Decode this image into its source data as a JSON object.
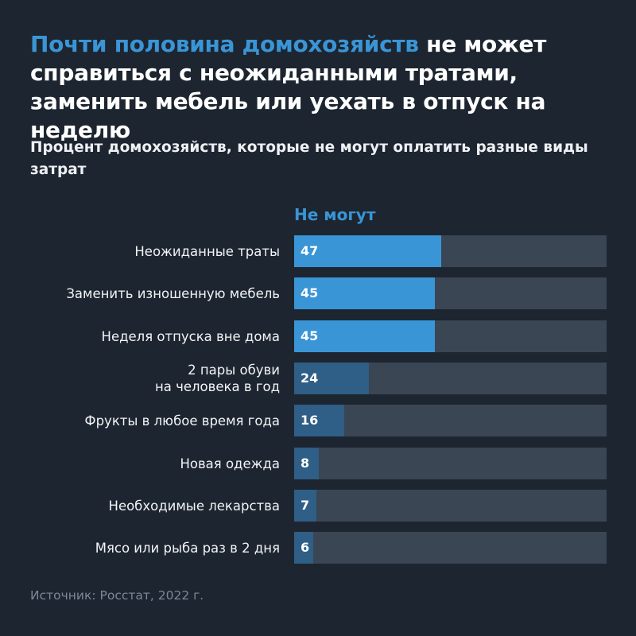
{
  "title": {
    "accent": "Почти половина домохозяйств",
    "rest": " не может справиться с неожиданными тратами, заменить мебель или уехать в отпуск на неделю"
  },
  "subtitle": "Процент домохозяйств, которые не могут оплатить разные виды затрат",
  "source": "Источник: Росстат, 2022 г.",
  "colors": {
    "background": "#1d2530",
    "accent": "#3a95d6",
    "bar_high": "#3a95d6",
    "bar_low": "#2f5e86",
    "track": "#3a4654"
  },
  "chart_data": {
    "type": "bar",
    "orientation": "horizontal",
    "column_header": "Не могут",
    "categories": [
      "Неожиданные траты",
      "Заменить изношенную мебель",
      "Неделя отпуска вне дома",
      "2 пары обуви\nна человека в год",
      "Фрукты в любое время года",
      "Новая одежда",
      "Необходимые лекарства",
      "Мясо или рыба раз в 2 дня"
    ],
    "values": [
      47,
      45,
      45,
      24,
      16,
      8,
      7,
      6
    ],
    "xlim": [
      0,
      100
    ],
    "grid": false,
    "highlighted": [
      true,
      true,
      true,
      false,
      false,
      false,
      false,
      false
    ]
  }
}
